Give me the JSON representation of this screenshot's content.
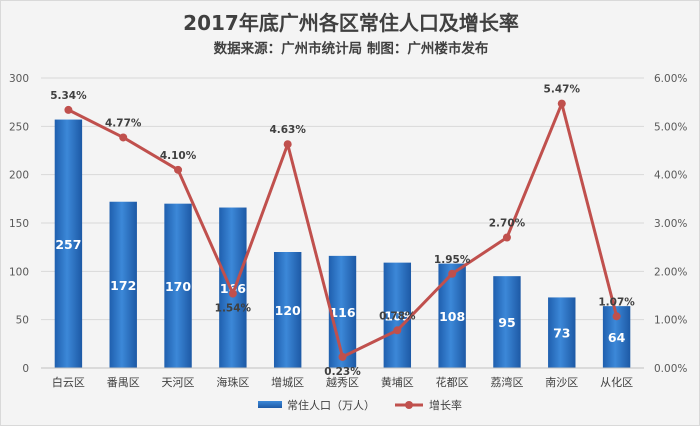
{
  "chart_data": {
    "type": "bar",
    "title": "2017年底广州各区常住人口及增长率",
    "subtitle": "数据来源：广州市统计局 制图：广州楼市发布",
    "categories": [
      "白云区",
      "番禺区",
      "天河区",
      "海珠区",
      "增城区",
      "越秀区",
      "黄埔区",
      "花都区",
      "荔湾区",
      "南沙区",
      "从化区"
    ],
    "series": [
      {
        "name": "常住人口（万人）",
        "type": "bar",
        "axis": "left",
        "values": [
          257,
          172,
          170,
          166,
          120,
          116,
          109,
          108,
          95,
          73,
          64
        ],
        "labels": [
          "257",
          "172",
          "170",
          "166",
          "120",
          "116",
          "109",
          "108",
          "95",
          "73",
          "64"
        ],
        "color": "#2e75c8"
      },
      {
        "name": "增长率",
        "type": "line",
        "axis": "right",
        "values": [
          5.34,
          4.77,
          4.1,
          1.54,
          4.63,
          0.23,
          0.78,
          1.95,
          2.7,
          5.47,
          1.07
        ],
        "labels": [
          "5.34%",
          "4.77%",
          "4.10%",
          "1.54%",
          "4.63%",
          "0.23%",
          "0.78%",
          "1.95%",
          "2.70%",
          "5.47%",
          "1.07%"
        ],
        "color": "#c0504d"
      }
    ],
    "y_left": {
      "min": 0,
      "max": 300,
      "ticks": [
        "0",
        "50",
        "100",
        "150",
        "200",
        "250",
        "300"
      ]
    },
    "y_right": {
      "min": 0,
      "max": 6,
      "ticks": [
        "0.00%",
        "1.00%",
        "2.00%",
        "3.00%",
        "4.00%",
        "5.00%",
        "6.00%"
      ]
    },
    "grid": true,
    "legend_position": "bottom"
  }
}
